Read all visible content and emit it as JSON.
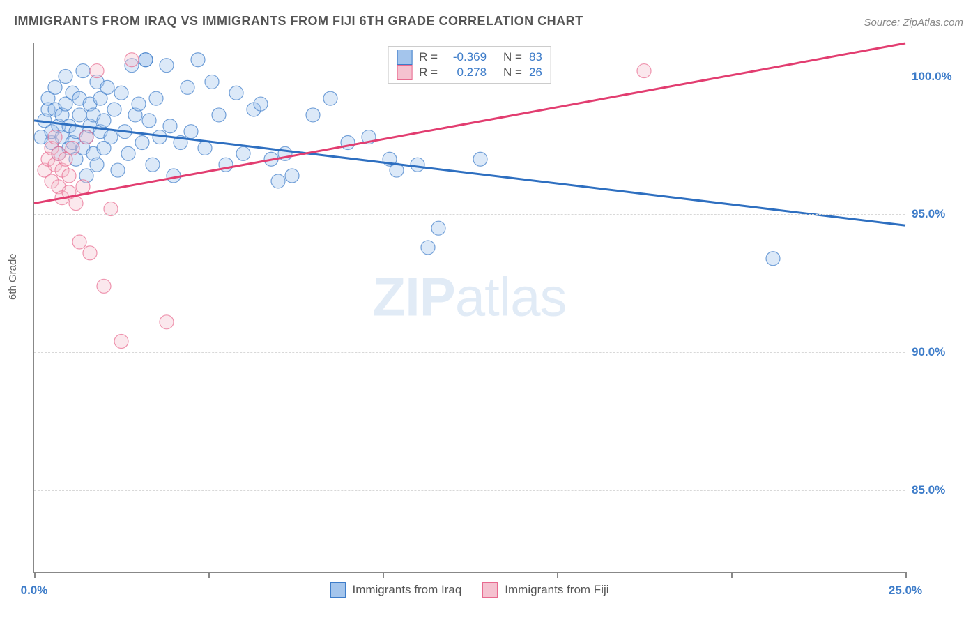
{
  "title": "IMMIGRANTS FROM IRAQ VS IMMIGRANTS FROM FIJI 6TH GRADE CORRELATION CHART",
  "source": "Source: ZipAtlas.com",
  "ylabel": "6th Grade",
  "watermark_bold": "ZIP",
  "watermark_light": "atlas",
  "chart": {
    "type": "scatter-with-trendlines",
    "xlim": [
      0,
      25
    ],
    "ylim": [
      82,
      101.2
    ],
    "xticks": [
      {
        "v": 0,
        "label": "0.0%"
      },
      {
        "v": 5,
        "label": ""
      },
      {
        "v": 10,
        "label": ""
      },
      {
        "v": 15,
        "label": ""
      },
      {
        "v": 20,
        "label": ""
      },
      {
        "v": 25,
        "label": "25.0%"
      }
    ],
    "yticks": [
      {
        "v": 85,
        "label": "85.0%"
      },
      {
        "v": 90,
        "label": "90.0%"
      },
      {
        "v": 95,
        "label": "95.0%"
      },
      {
        "v": 100,
        "label": "100.0%"
      }
    ],
    "grid_color": "#d8d8d8",
    "background_color": "#ffffff",
    "marker_radius": 10,
    "marker_opacity": 0.38,
    "series": [
      {
        "name": "Immigrants from Iraq",
        "color_fill": "#a4c5ec",
        "color_stroke": "#3d7cc9",
        "R": "-0.369",
        "N": "83",
        "trend": {
          "x1": 0,
          "y1": 98.4,
          "x2": 25,
          "y2": 94.6,
          "color": "#2e6fc0",
          "width": 3
        },
        "points": [
          [
            0.2,
            97.8
          ],
          [
            0.3,
            98.4
          ],
          [
            0.4,
            98.8
          ],
          [
            0.4,
            99.2
          ],
          [
            0.5,
            97.6
          ],
          [
            0.5,
            98.0
          ],
          [
            0.6,
            98.8
          ],
          [
            0.6,
            99.6
          ],
          [
            0.7,
            97.2
          ],
          [
            0.7,
            98.2
          ],
          [
            0.8,
            97.8
          ],
          [
            0.8,
            98.6
          ],
          [
            0.9,
            99.0
          ],
          [
            0.9,
            100.0
          ],
          [
            1.0,
            97.4
          ],
          [
            1.0,
            98.2
          ],
          [
            1.1,
            97.6
          ],
          [
            1.1,
            99.4
          ],
          [
            1.2,
            97.0
          ],
          [
            1.2,
            98.0
          ],
          [
            1.3,
            98.6
          ],
          [
            1.3,
            99.2
          ],
          [
            1.4,
            97.4
          ],
          [
            1.4,
            100.2
          ],
          [
            1.5,
            96.4
          ],
          [
            1.5,
            97.8
          ],
          [
            1.6,
            98.2
          ],
          [
            1.6,
            99.0
          ],
          [
            1.7,
            97.2
          ],
          [
            1.7,
            98.6
          ],
          [
            1.8,
            99.8
          ],
          [
            1.8,
            96.8
          ],
          [
            1.9,
            98.0
          ],
          [
            1.9,
            99.2
          ],
          [
            2.0,
            97.4
          ],
          [
            2.0,
            98.4
          ],
          [
            2.1,
            99.6
          ],
          [
            2.2,
            97.8
          ],
          [
            2.3,
            98.8
          ],
          [
            2.4,
            96.6
          ],
          [
            2.5,
            99.4
          ],
          [
            2.6,
            98.0
          ],
          [
            2.7,
            97.2
          ],
          [
            2.8,
            100.4
          ],
          [
            2.9,
            98.6
          ],
          [
            3.0,
            99.0
          ],
          [
            3.1,
            97.6
          ],
          [
            3.2,
            100.6
          ],
          [
            3.3,
            98.4
          ],
          [
            3.4,
            96.8
          ],
          [
            3.5,
            99.2
          ],
          [
            3.6,
            97.8
          ],
          [
            3.8,
            100.4
          ],
          [
            3.9,
            98.2
          ],
          [
            4.0,
            96.4
          ],
          [
            4.2,
            97.6
          ],
          [
            4.4,
            99.6
          ],
          [
            4.5,
            98.0
          ],
          [
            4.7,
            100.6
          ],
          [
            4.9,
            97.4
          ],
          [
            5.1,
            99.8
          ],
          [
            5.3,
            98.6
          ],
          [
            5.5,
            96.8
          ],
          [
            5.8,
            99.4
          ],
          [
            6.0,
            97.2
          ],
          [
            6.3,
            98.8
          ],
          [
            6.5,
            99.0
          ],
          [
            6.8,
            97.0
          ],
          [
            7.0,
            96.2
          ],
          [
            7.2,
            97.2
          ],
          [
            7.4,
            96.4
          ],
          [
            8.0,
            98.6
          ],
          [
            8.5,
            99.2
          ],
          [
            9.0,
            97.6
          ],
          [
            9.6,
            97.8
          ],
          [
            10.2,
            97.0
          ],
          [
            10.4,
            96.6
          ],
          [
            11.0,
            96.8
          ],
          [
            11.3,
            93.8
          ],
          [
            11.6,
            94.5
          ],
          [
            12.8,
            97.0
          ],
          [
            21.2,
            93.4
          ],
          [
            3.2,
            100.6
          ]
        ]
      },
      {
        "name": "Immigrants from Fiji",
        "color_fill": "#f5c2d0",
        "color_stroke": "#e86a8f",
        "R": "0.278",
        "N": "26",
        "trend": {
          "x1": 0,
          "y1": 95.4,
          "x2": 25,
          "y2": 101.2,
          "color": "#e23d70",
          "width": 3
        },
        "points": [
          [
            0.3,
            96.6
          ],
          [
            0.4,
            97.0
          ],
          [
            0.5,
            97.4
          ],
          [
            0.5,
            96.2
          ],
          [
            0.6,
            97.8
          ],
          [
            0.6,
            96.8
          ],
          [
            0.7,
            97.2
          ],
          [
            0.7,
            96.0
          ],
          [
            0.8,
            96.6
          ],
          [
            0.8,
            95.6
          ],
          [
            0.9,
            97.0
          ],
          [
            1.0,
            95.8
          ],
          [
            1.0,
            96.4
          ],
          [
            1.1,
            97.4
          ],
          [
            1.2,
            95.4
          ],
          [
            1.3,
            94.0
          ],
          [
            1.4,
            96.0
          ],
          [
            1.5,
            97.8
          ],
          [
            1.6,
            93.6
          ],
          [
            1.8,
            100.2
          ],
          [
            2.0,
            92.4
          ],
          [
            2.2,
            95.2
          ],
          [
            2.5,
            90.4
          ],
          [
            2.8,
            100.6
          ],
          [
            3.8,
            91.1
          ],
          [
            17.5,
            100.2
          ]
        ]
      }
    ],
    "legend_labels": {
      "r_prefix": "R = ",
      "n_prefix": "N = "
    }
  }
}
